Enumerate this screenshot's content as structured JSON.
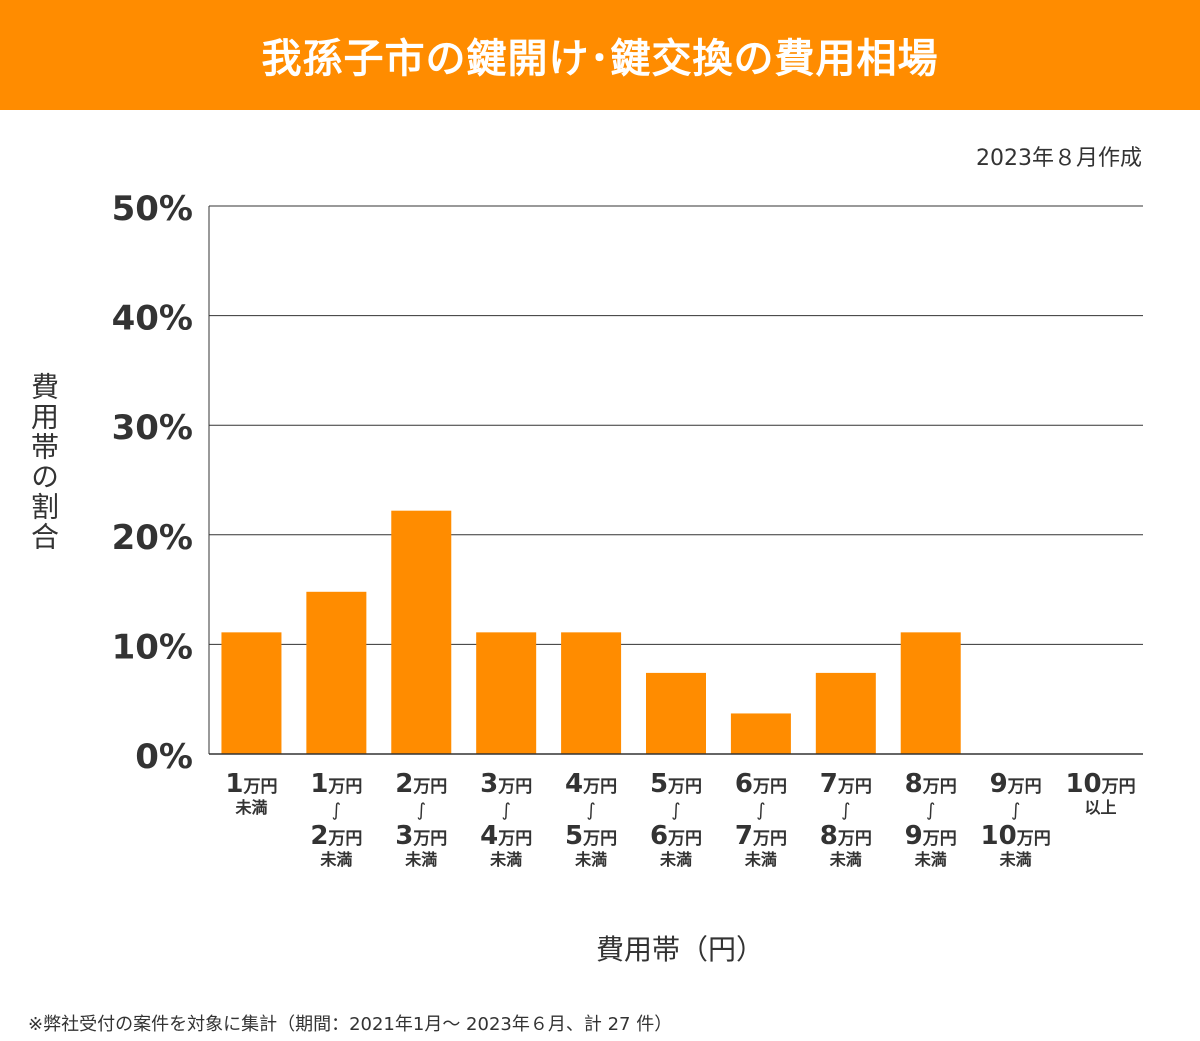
{
  "header": {
    "title": "我孫子市の鍵開け･鍵交換の費用相場"
  },
  "created": "2023年８月作成",
  "footnote": "※弊社受付の案件を対象に集計（期間：2021年1月～ 2023年６月、計 27 件）",
  "chart_data": {
    "type": "bar",
    "title": "我孫子市の鍵開け･鍵交換の費用相場",
    "xlabel": "費用帯（円）",
    "ylabel": "費用帯の割合",
    "ylim": [
      0,
      50
    ],
    "yticks": [
      0,
      10,
      20,
      30,
      40,
      50
    ],
    "ytick_labels": [
      "0%",
      "10%",
      "20%",
      "30%",
      "40%",
      "50%"
    ],
    "grid": true,
    "bar_color": "#FF8C00",
    "categories": [
      [
        "1万円",
        "未満"
      ],
      [
        "1万円",
        "〜",
        "2万円",
        "未満"
      ],
      [
        "2万円",
        "〜",
        "3万円",
        "未満"
      ],
      [
        "3万円",
        "〜",
        "4万円",
        "未満"
      ],
      [
        "4万円",
        "〜",
        "5万円",
        "未満"
      ],
      [
        "5万円",
        "〜",
        "6万円",
        "未満"
      ],
      [
        "6万円",
        "〜",
        "7万円",
        "未満"
      ],
      [
        "7万円",
        "〜",
        "8万円",
        "未満"
      ],
      [
        "8万円",
        "〜",
        "9万円",
        "未満"
      ],
      [
        "9万円",
        "〜",
        "10万円",
        "未満"
      ],
      [
        "10万円",
        "以上"
      ]
    ],
    "values": [
      11.1,
      14.8,
      22.2,
      11.1,
      11.1,
      7.4,
      3.7,
      7.4,
      11.1,
      0,
      0
    ]
  }
}
